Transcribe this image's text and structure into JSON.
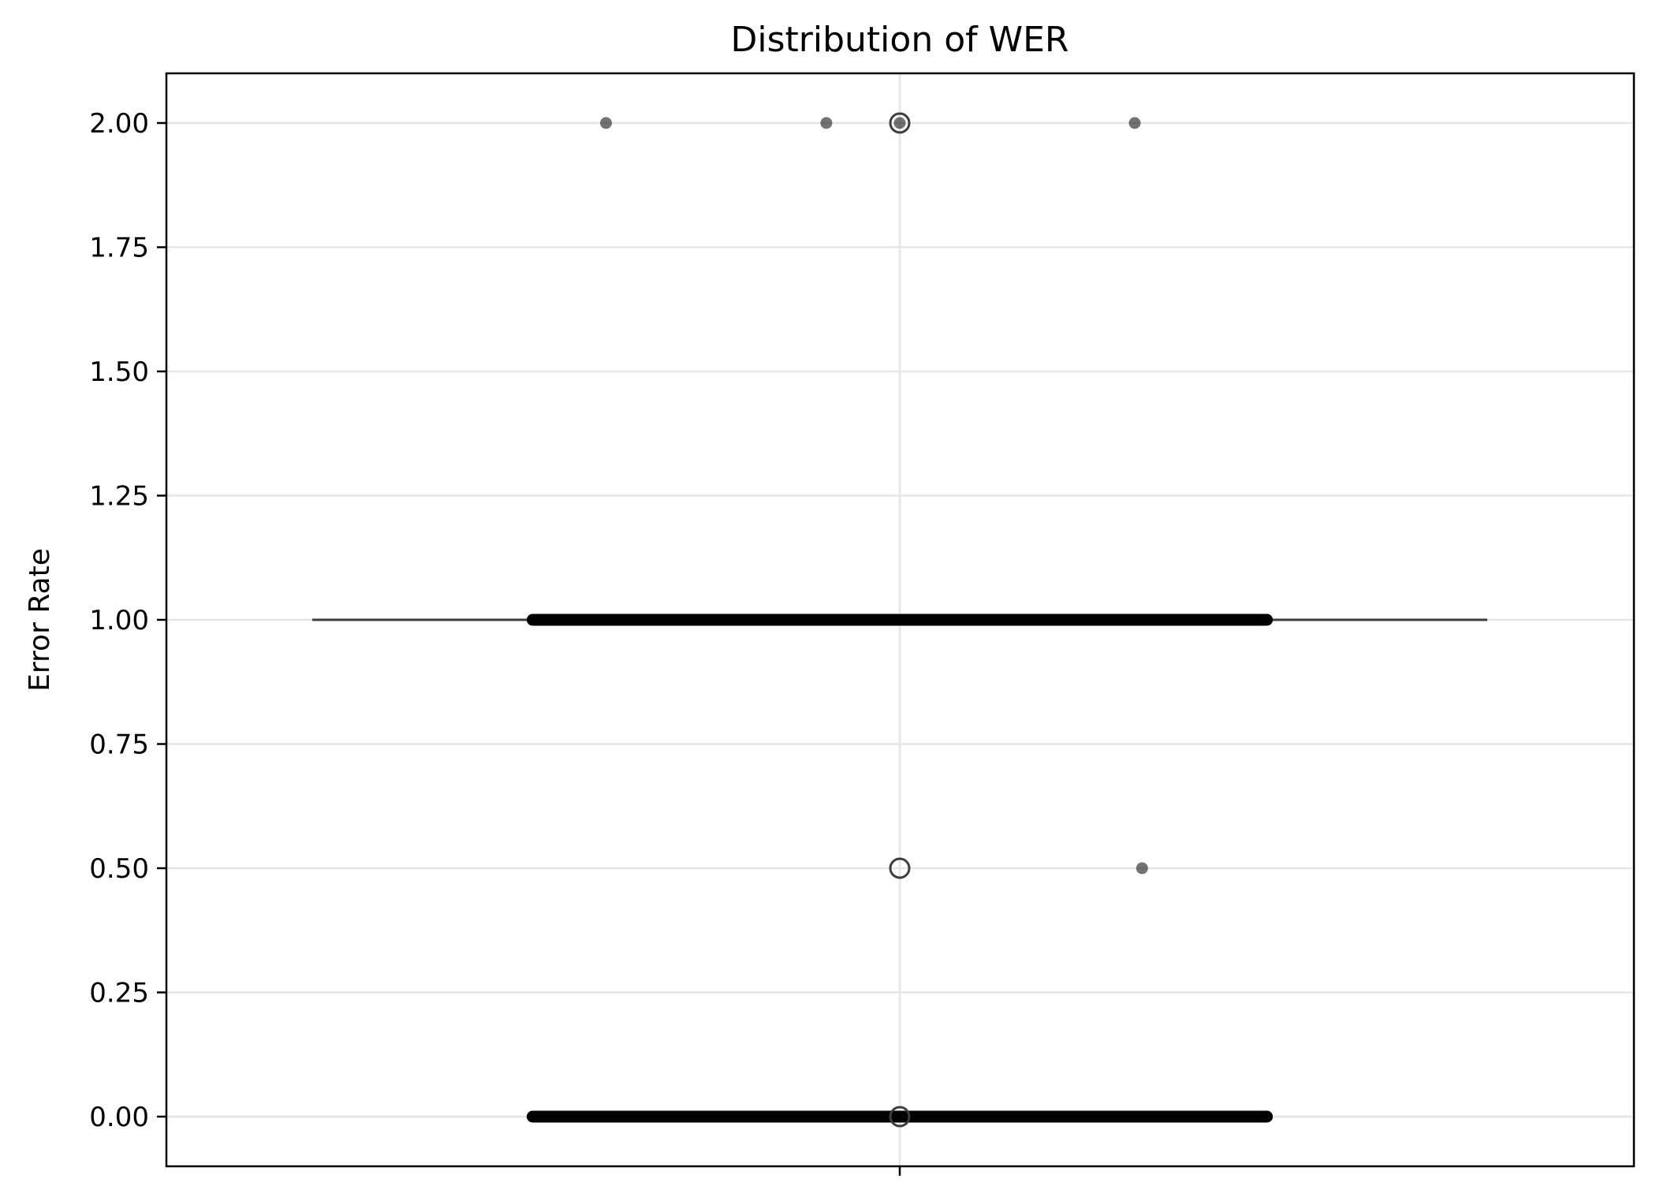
{
  "chart_data": {
    "type": "box",
    "title": "Distribution of WER",
    "xlabel": "",
    "ylabel": "Error Rate",
    "ylim": [
      -0.1,
      2.1
    ],
    "yticks": [
      "0.00",
      "0.25",
      "0.50",
      "0.75",
      "1.00",
      "1.25",
      "1.50",
      "1.75",
      "2.00"
    ],
    "ytick_values": [
      0,
      0.25,
      0.5,
      0.75,
      1.0,
      1.25,
      1.5,
      1.75,
      2.0
    ],
    "grid": true,
    "box": {
      "q1": 1.0,
      "median": 1.0,
      "q3": 1.0,
      "whisker_low": 1.0,
      "whisker_high": 1.0,
      "outliers": [
        0.0,
        0.5,
        2.0
      ]
    },
    "strip_points": {
      "description_values": [
        {
          "y": 2.0,
          "x_offsets": [
            -0.2,
            -0.05,
            0.0,
            0.16
          ]
        },
        {
          "y": 1.0,
          "x_range": [
            -0.25,
            0.25
          ]
        },
        {
          "y": 0.5,
          "x_offsets": [
            0.165
          ]
        },
        {
          "y": 0.0,
          "x_range": [
            -0.25,
            0.25
          ]
        }
      ]
    },
    "colors": {
      "box": "#3d3d3d",
      "point": "#000000",
      "grid": "#e6e6e6"
    }
  }
}
